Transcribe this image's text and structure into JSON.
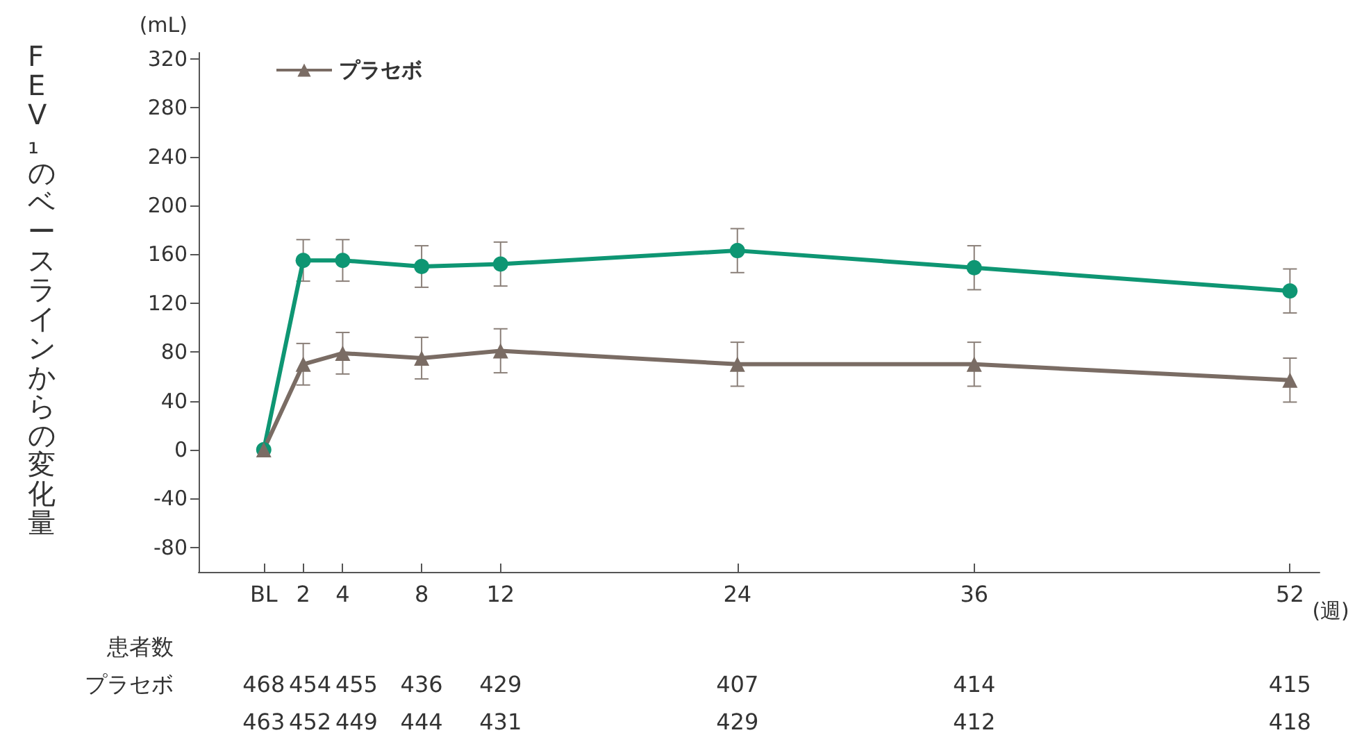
{
  "chart_data": {
    "type": "line",
    "ylabel": "FEV₁のベースラインからの変化量",
    "xlabel": "(週)",
    "x": [
      0,
      2,
      4,
      8,
      12,
      24,
      36,
      52
    ],
    "series": [
      {
        "color": "#0e9673",
        "marker": "circle",
        "values": [
          0,
          155,
          155,
          150,
          152,
          163,
          149,
          130
        ],
        "errors": [
          null,
          17,
          17,
          17,
          18,
          18,
          18,
          18
        ]
      },
      {
        "name": "プラセボ",
        "color": "#7a6c64",
        "marker": "triangle",
        "values": [
          0,
          70,
          79,
          75,
          81,
          70,
          70,
          57
        ],
        "errors": [
          null,
          17,
          17,
          17,
          18,
          18,
          18,
          18
        ]
      }
    ],
    "xlim": [
      -3.3,
      53.5
    ],
    "xticks": [
      {
        "value": 0,
        "label": "BL"
      },
      2,
      4,
      8,
      12,
      24,
      36,
      52
    ],
    "ylim": [
      -100,
      325
    ],
    "yticks": [
      -80,
      -40,
      0,
      40,
      80,
      120,
      160,
      200,
      240,
      280,
      320
    ],
    "grid": false,
    "legend": "top left",
    "annotations": [
      "(mL)",
      "患者数",
      "プラセボ 468 454 455 436 429 407 414 415",
      "463 452 449 444 431 429 412 418"
    ]
  }
}
